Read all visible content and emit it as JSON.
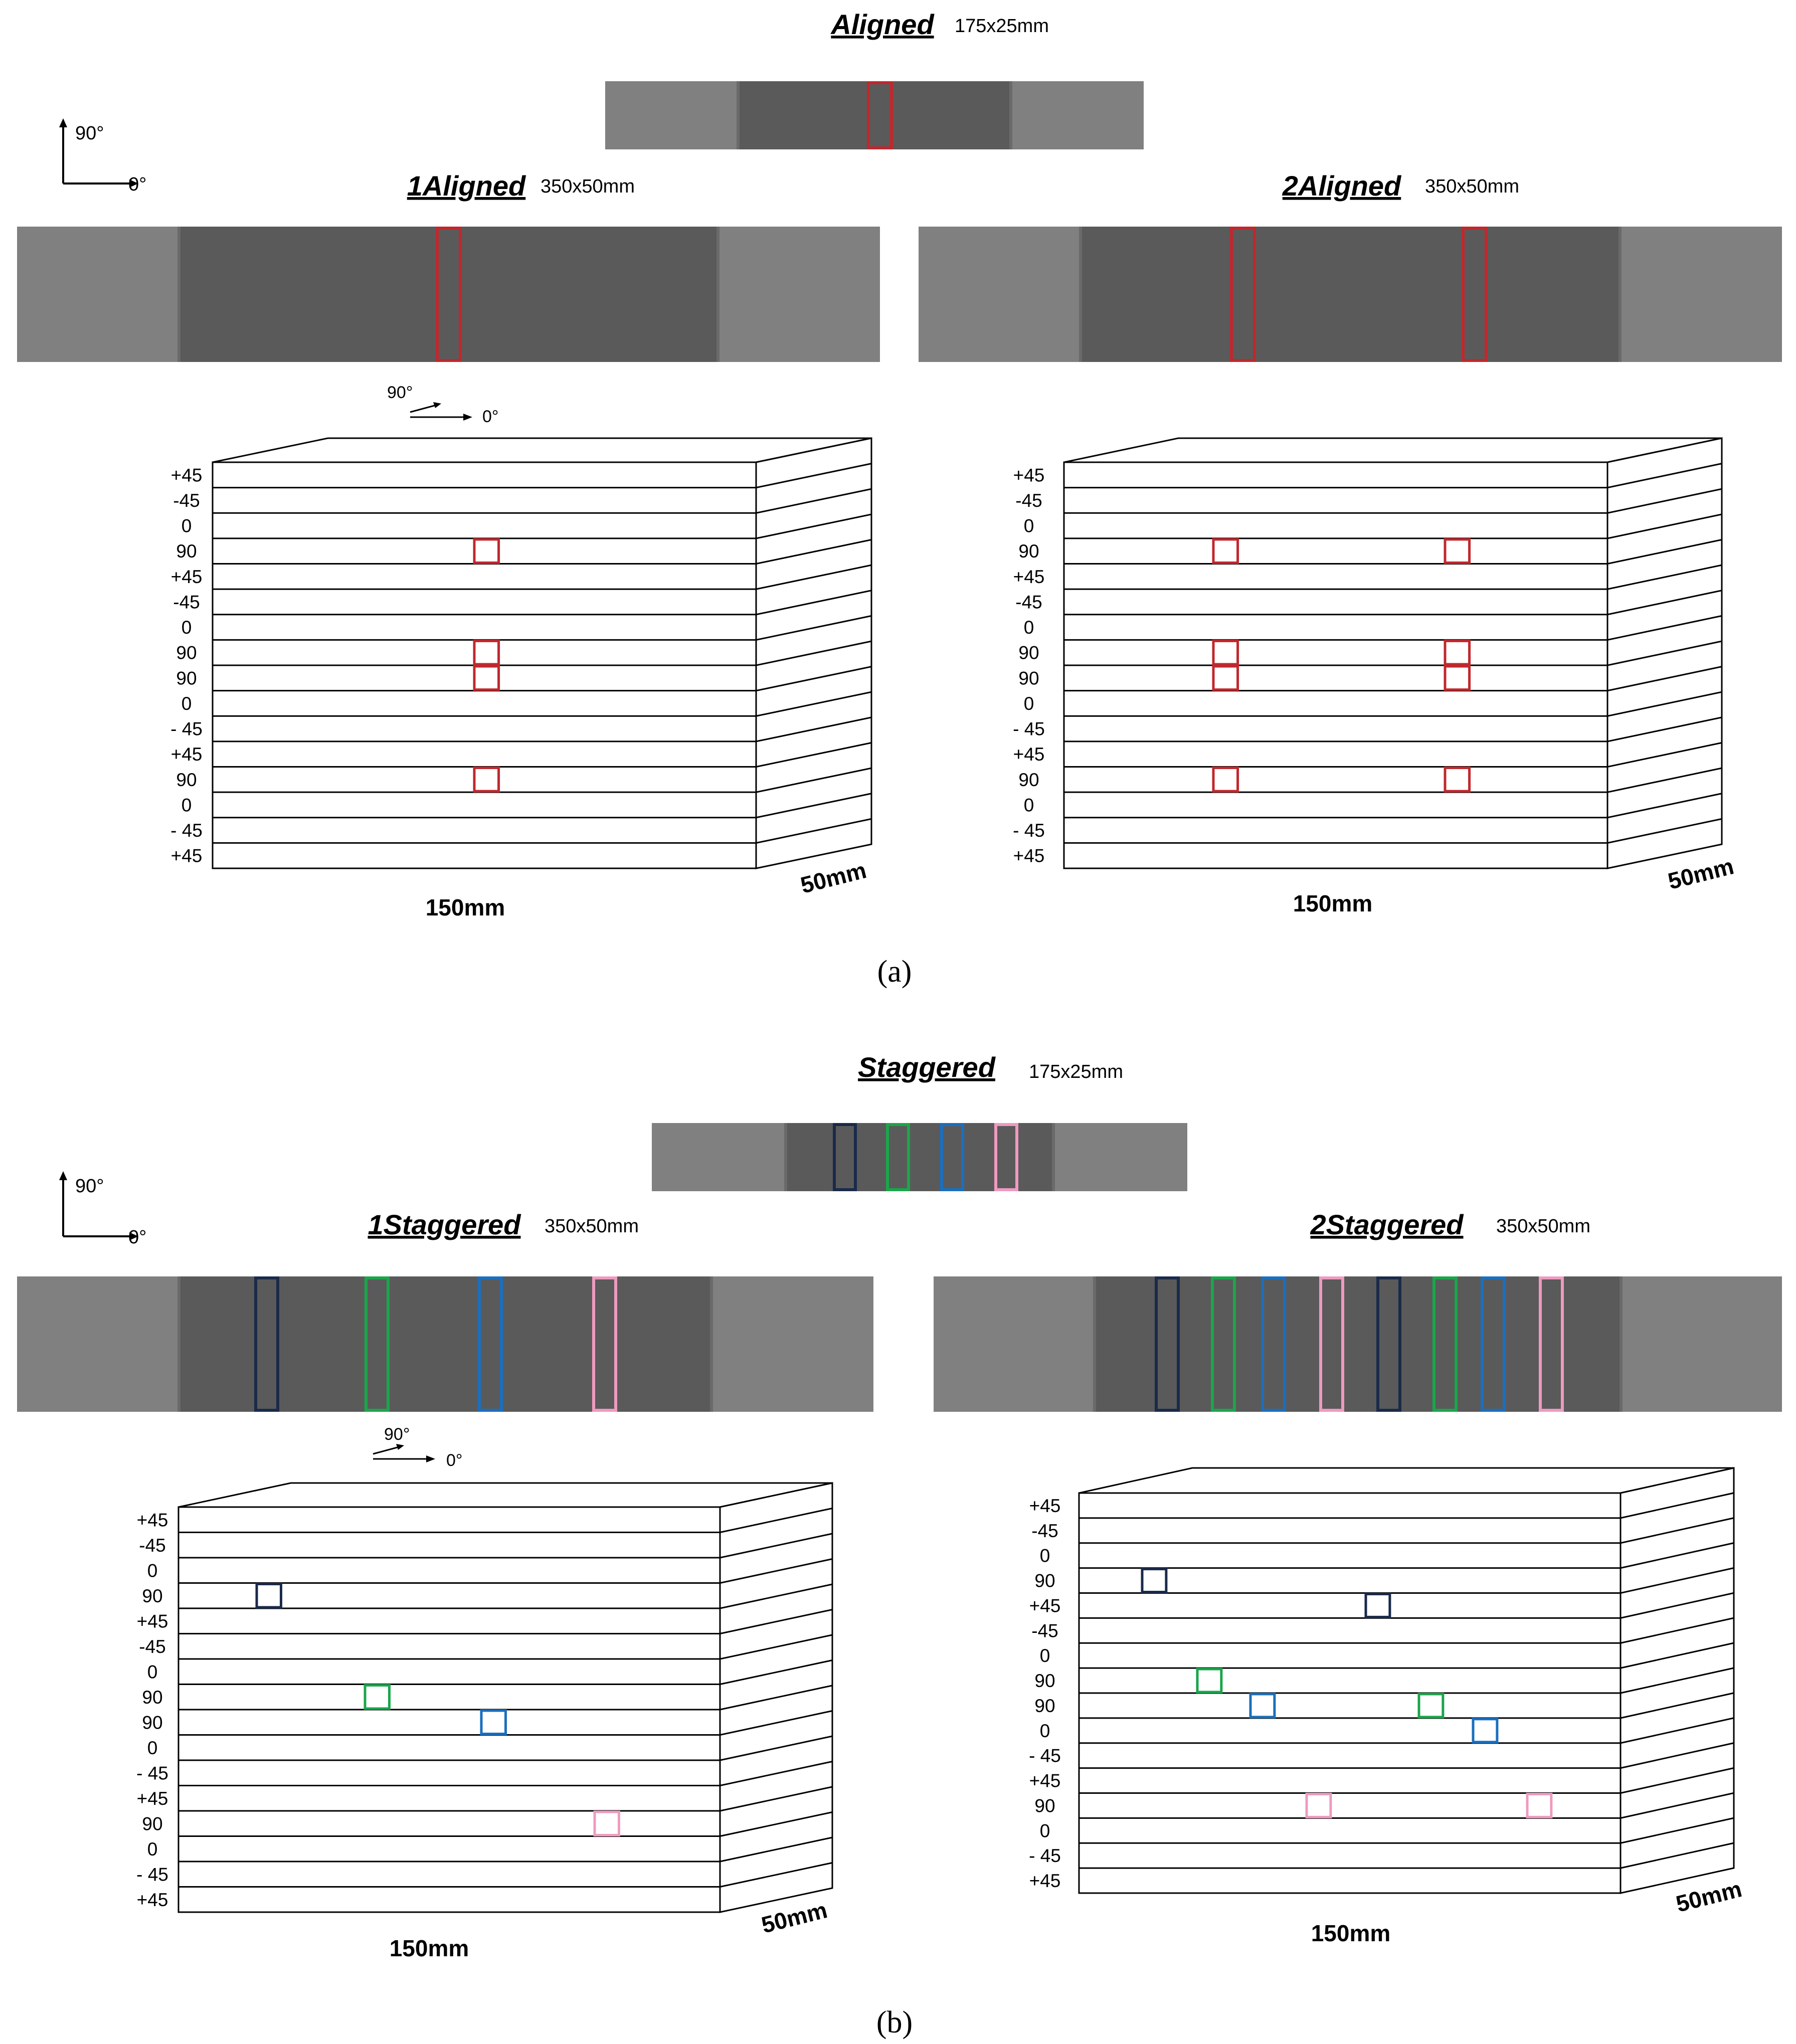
{
  "colors": {
    "grip": "#808080",
    "gauge": "#5a5a5a",
    "red": "#c0282d",
    "navy": "#1a2a4a",
    "green": "#1aa64a",
    "blue": "#1a6fbf",
    "pink": "#ef9ac0",
    "line": "#000000"
  },
  "axes_label": {
    "y": "90°",
    "x": "0°"
  },
  "part_a": {
    "caption": "(a)",
    "coupon": {
      "title": "Aligned",
      "size": "175x25mm"
    },
    "left": {
      "title": "1Aligned",
      "size": "350x50mm"
    },
    "right": {
      "title": "2Aligned",
      "size": "350x50mm"
    }
  },
  "part_b": {
    "caption": "(b)",
    "coupon": {
      "title": "Staggered",
      "size": "175x25mm"
    },
    "left": {
      "title": "1Staggered",
      "size": "350x50mm"
    },
    "right": {
      "title": "2Staggered",
      "size": "350x50mm"
    }
  },
  "box_dims": {
    "length": "150mm",
    "depth": "50mm"
  },
  "ply_labels": [
    "+45",
    "-45",
    "0",
    "90",
    "+45",
    "-45",
    "0",
    "90",
    "90",
    "0",
    "- 45",
    "+45",
    "90",
    "0",
    "- 45",
    "+45"
  ]
}
